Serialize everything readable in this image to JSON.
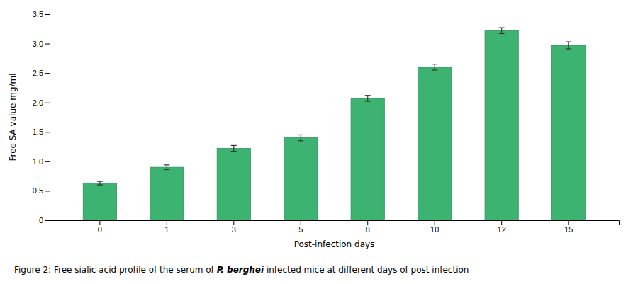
{
  "chart_data": {
    "type": "bar",
    "categories": [
      "0",
      "1",
      "3",
      "5",
      "8",
      "10",
      "12",
      "15"
    ],
    "values": [
      0.63,
      0.9,
      1.22,
      1.4,
      2.07,
      2.6,
      3.22,
      2.97
    ],
    "errors": [
      0.03,
      0.04,
      0.05,
      0.05,
      0.05,
      0.05,
      0.05,
      0.06
    ],
    "color": "#3cb371",
    "xlabel": "Post-infection days",
    "ylabel": "Free SA value mg/ml",
    "ylim": [
      0,
      3.5
    ],
    "yticks": [
      0,
      0.5,
      {
        "value": 1.0,
        "label": "1.0"
      },
      1.5,
      {
        "value": 2.0,
        "label": "2.0"
      },
      2.5,
      {
        "value": 3.0,
        "label": "3.0"
      },
      3.5
    ],
    "grid": false,
    "caption": [
      "Figure 2: Free sialic acid profile of the serum of ",
      "P. berghei",
      " infected mice at different days of post infection"
    ]
  }
}
